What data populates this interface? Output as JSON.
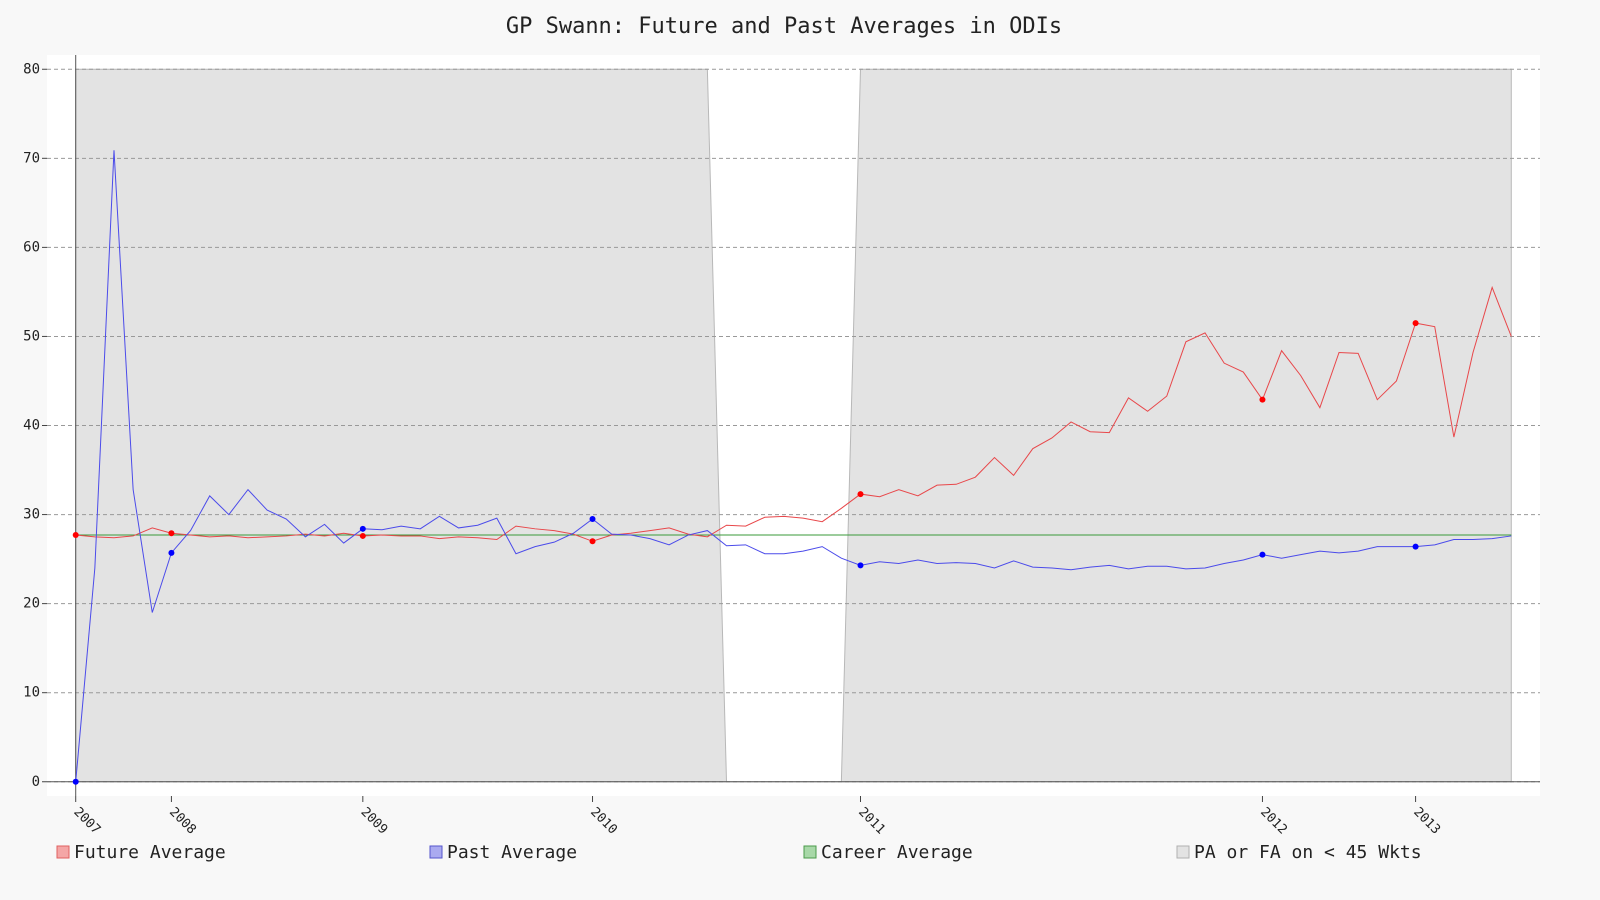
{
  "chart_data": {
    "type": "line",
    "title": "GP Swann: Future and Past Averages in ODIs",
    "xlim": [
      -1.5,
      76.5
    ],
    "xticks": [
      {
        "value": 0,
        "label": "2007"
      },
      {
        "value": 5,
        "label": "2008"
      },
      {
        "value": 15,
        "label": "2009"
      },
      {
        "value": 27,
        "label": "2010"
      },
      {
        "value": 41,
        "label": "2011"
      },
      {
        "value": 62,
        "label": "2012"
      },
      {
        "value": 70,
        "label": "2013"
      }
    ],
    "ylim": [
      -1.6,
      81.6
    ],
    "yticks": [
      0,
      10,
      20,
      30,
      40,
      50,
      60,
      70,
      80
    ],
    "grid": true,
    "legend": "bottom",
    "shade": {
      "name": "PA or FA on < 45 Wkts",
      "color": "#e3e3e3",
      "values": [
        80,
        80,
        80,
        80,
        80,
        80,
        80,
        80,
        80,
        80,
        80,
        80,
        80,
        80,
        80,
        80,
        80,
        80,
        80,
        80,
        80,
        80,
        80,
        80,
        80,
        80,
        80,
        80,
        80,
        80,
        80,
        80,
        80,
        80,
        0,
        0,
        0,
        0,
        0,
        0,
        0,
        80,
        80,
        80,
        80,
        80,
        80,
        80,
        80,
        80,
        80,
        80,
        80,
        80,
        80,
        80,
        80,
        80,
        80,
        80,
        80,
        80,
        80,
        80,
        80,
        80,
        80,
        80,
        80,
        80,
        80,
        80,
        80,
        80,
        80,
        80
      ]
    },
    "series": [
      {
        "name": "Future Average",
        "color": "#e8474a",
        "values": [
          27.7,
          27.5,
          27.4,
          27.6,
          28.5,
          27.9,
          27.7,
          27.5,
          27.6,
          27.4,
          27.5,
          27.6,
          27.8,
          27.6,
          27.9,
          27.6,
          27.7,
          27.6,
          27.6,
          27.3,
          27.5,
          27.4,
          27.2,
          28.7,
          28.4,
          28.2,
          27.8,
          27.0,
          27.7,
          27.9,
          28.2,
          28.5,
          27.8,
          27.5,
          28.8,
          28.7,
          29.7,
          29.8,
          29.6,
          29.2,
          30.7,
          32.3,
          32.0,
          32.8,
          32.1,
          33.3,
          33.4,
          34.2,
          36.4,
          34.4,
          37.4,
          38.6,
          40.4,
          39.3,
          39.2,
          43.1,
          41.6,
          43.3,
          49.4,
          50.4,
          47.0,
          46.0,
          42.9,
          48.4,
          45.6,
          42.0,
          48.2,
          48.1,
          42.9,
          45.0,
          51.5,
          51.1,
          38.7,
          48.2,
          55.5,
          50.0
        ]
      },
      {
        "name": "Past Average",
        "color": "#4b4bea",
        "values": [
          0,
          24.0,
          70.9,
          32.8,
          19.0,
          25.7,
          28.2,
          32.1,
          30.0,
          32.8,
          30.5,
          29.5,
          27.5,
          28.9,
          26.8,
          28.4,
          28.3,
          28.7,
          28.4,
          29.8,
          28.5,
          28.8,
          29.6,
          25.6,
          26.4,
          26.9,
          27.9,
          29.5,
          27.8,
          27.7,
          27.3,
          26.6,
          27.7,
          28.2,
          26.5,
          26.6,
          25.6,
          25.6,
          25.9,
          26.4,
          25.1,
          24.3,
          24.7,
          24.5,
          24.9,
          24.5,
          24.6,
          24.5,
          24.0,
          24.8,
          24.1,
          24.0,
          23.8,
          24.1,
          24.3,
          23.9,
          24.2,
          24.2,
          23.9,
          24.0,
          24.5,
          24.9,
          25.5,
          25.1,
          25.5,
          25.9,
          25.7,
          25.9,
          26.4,
          26.4,
          26.4,
          26.6,
          27.2,
          27.2,
          27.3,
          27.6
        ]
      }
    ],
    "career": {
      "name": "Career Average",
      "color": "#3a9a3a",
      "value": 27.7
    }
  }
}
